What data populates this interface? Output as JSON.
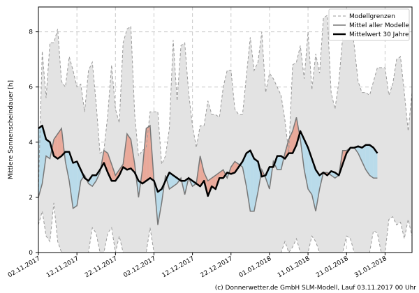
{
  "chart_data": {
    "type": "line",
    "ylabel": "Mittlere Sonnenscheindauer [h]",
    "xlabel": "",
    "ylim": [
      0,
      8.9
    ],
    "yticks": [
      0,
      2,
      4,
      6,
      8
    ],
    "x_start": "02.11.2017",
    "x_end": "07.02.2018",
    "xticks": [
      "02.11.2017",
      "12.11.2017",
      "22.11.2017",
      "02.12.2017",
      "12.12.2017",
      "22.12.2017",
      "01.01.2018",
      "11.01.2018",
      "21.01.2018",
      "31.01.2018"
    ],
    "xtick_days": [
      0,
      10,
      20,
      30,
      40,
      50,
      60,
      70,
      80,
      90
    ],
    "grid": true,
    "legend": {
      "position": "top-right",
      "entries": [
        {
          "label": "Modellgrenzen",
          "style": "dashed-gray"
        },
        {
          "label": "Mittel aller Modelle",
          "style": "solid-gray"
        },
        {
          "label": "Mittelwert 30 Jahre",
          "style": "solid-black-thick"
        }
      ]
    },
    "colors": {
      "band": "#e3e3e3",
      "band_edge": "#9a9a9a",
      "above": "#e9a99a",
      "below": "#b9dbea",
      "model_mean": "#777777",
      "climate": "#000000",
      "grid": "#c8c8c8"
    },
    "series": [
      {
        "name": "Modellgrenzen (max)",
        "values": [
          2.2,
          7.3,
          5.6,
          7.6,
          7.6,
          8.1,
          6.2,
          6.0,
          7.1,
          6.6,
          6.0,
          6.1,
          5.1,
          6.6,
          6.9,
          5.4,
          3.6,
          3.7,
          5.0,
          6.8,
          5.2,
          4.7,
          7.6,
          8.1,
          8.2,
          5.0,
          3.5,
          3.7,
          3.8,
          5.1,
          5.1,
          5.1,
          3.2,
          3.5,
          4.5,
          7.7,
          5.5,
          7.5,
          7.6,
          5.8,
          4.6,
          3.8,
          4.6,
          4.6,
          5.5,
          5.0,
          5.0,
          4.9,
          6.0,
          6.6,
          6.6,
          5.2,
          5.0,
          5.0,
          6.4,
          7.8,
          6.6,
          6.9,
          8.0,
          5.8,
          6.5,
          6.3,
          6.0,
          5.7,
          4.8,
          3.6,
          6.8,
          6.9,
          7.5,
          6.3,
          8.0,
          5.9,
          7.2,
          6.5,
          8.5,
          8.6,
          5.8,
          5.2,
          6.2,
          7.8,
          8.5,
          8.5,
          7.5,
          6.2,
          5.8,
          5.8,
          5.7,
          6.2,
          6.7,
          6.7,
          6.7,
          5.7,
          6.1,
          7.0,
          7.1,
          5.8,
          4.4,
          5.8
        ]
      },
      {
        "name": "Modellgrenzen (min)",
        "values": [
          1.0,
          1.5,
          0.6,
          0.4,
          1.8,
          0.4,
          0.0,
          0.0,
          0.0,
          0.0,
          0.0,
          0.0,
          0.0,
          0.0,
          0.9,
          0.7,
          0.0,
          0.0,
          0.7,
          0.9,
          0.0,
          0.6,
          0.0,
          0.0,
          0.0,
          0.0,
          0.0,
          0.0,
          0.0,
          0.9,
          0.0,
          0.0,
          0.0,
          0.0,
          0.0,
          0.0,
          0.0,
          0.0,
          0.0,
          0.0,
          0.0,
          0.0,
          0.0,
          0.0,
          0.0,
          0.0,
          0.0,
          0.0,
          0.0,
          0.0,
          0.0,
          0.0,
          0.0,
          0.0,
          0.0,
          0.0,
          0.0,
          0.0,
          0.0,
          0.0,
          0.0,
          0.0,
          0.0,
          0.0,
          0.4,
          0.0,
          0.2,
          0.5,
          0.0,
          0.0,
          0.0,
          0.6,
          0.4,
          0.0,
          0.0,
          0.0,
          0.0,
          0.0,
          0.0,
          0.0,
          0.6,
          0.5,
          0.0,
          0.0,
          0.0,
          0.0,
          0.0,
          0.8,
          0.7,
          0.0,
          0.0,
          1.2,
          1.3,
          1.0,
          1.1,
          0.5,
          1.2,
          0.6
        ]
      },
      {
        "name": "Mittel aller Modelle",
        "values": [
          2.0,
          2.5,
          3.5,
          3.4,
          4.1,
          4.3,
          4.5,
          3.3,
          2.6,
          1.6,
          1.7,
          2.6,
          2.8,
          2.5,
          2.4,
          2.6,
          2.9,
          3.7,
          3.6,
          3.2,
          2.8,
          3.0,
          3.2,
          4.3,
          4.1,
          3.2,
          2.0,
          3.0,
          4.5,
          4.6,
          2.6,
          1.0,
          1.8,
          2.8,
          2.3,
          2.4,
          2.5,
          2.7,
          2.1,
          2.7,
          2.4,
          2.5,
          3.5,
          2.9,
          2.6,
          2.7,
          2.8,
          2.9,
          3.0,
          2.7,
          3.1,
          3.3,
          3.2,
          3.1,
          2.4,
          1.5,
          1.5,
          2.2,
          3.0,
          2.7,
          2.3,
          3.3,
          3.0,
          3.0,
          3.6,
          4.1,
          4.4,
          4.9,
          4.1,
          3.0,
          2.3,
          2.1,
          1.5,
          2.3,
          2.9,
          2.9,
          2.8,
          2.7,
          2.8,
          3.7,
          3.7,
          3.8,
          3.8,
          3.6,
          3.3,
          3.0,
          2.8,
          2.7,
          2.7
        ]
      },
      {
        "name": "Mittelwert 30 Jahre",
        "values": [
          4.5,
          4.6,
          4.1,
          4.0,
          3.5,
          3.4,
          3.5,
          3.65,
          3.65,
          3.25,
          3.3,
          3.0,
          2.7,
          2.6,
          2.8,
          2.8,
          3.0,
          3.25,
          2.9,
          2.6,
          2.6,
          2.8,
          3.1,
          3.0,
          3.05,
          2.9,
          2.6,
          2.5,
          2.6,
          2.7,
          2.6,
          2.2,
          2.3,
          2.6,
          2.9,
          2.8,
          2.7,
          2.6,
          2.6,
          2.7,
          2.6,
          2.5,
          2.4,
          2.6,
          2.05,
          2.4,
          2.3,
          2.7,
          2.7,
          2.9,
          2.85,
          2.9,
          3.1,
          3.3,
          3.6,
          3.7,
          3.4,
          3.3,
          2.75,
          2.8,
          3.1,
          3.1,
          3.5,
          3.5,
          3.4,
          3.6,
          3.6,
          3.9,
          4.4,
          4.1,
          3.8,
          3.4,
          3.0,
          2.8,
          2.9,
          2.8,
          2.95,
          2.9,
          2.8,
          3.2,
          3.6,
          3.8,
          3.8,
          3.85,
          3.8,
          3.9,
          3.9,
          3.8,
          3.6
        ]
      }
    ]
  },
  "footer": {
    "credit": "(c) Donnerwetter.de GmbH SLM-Modell, Lauf 03.11.2017 00 Uhr"
  }
}
